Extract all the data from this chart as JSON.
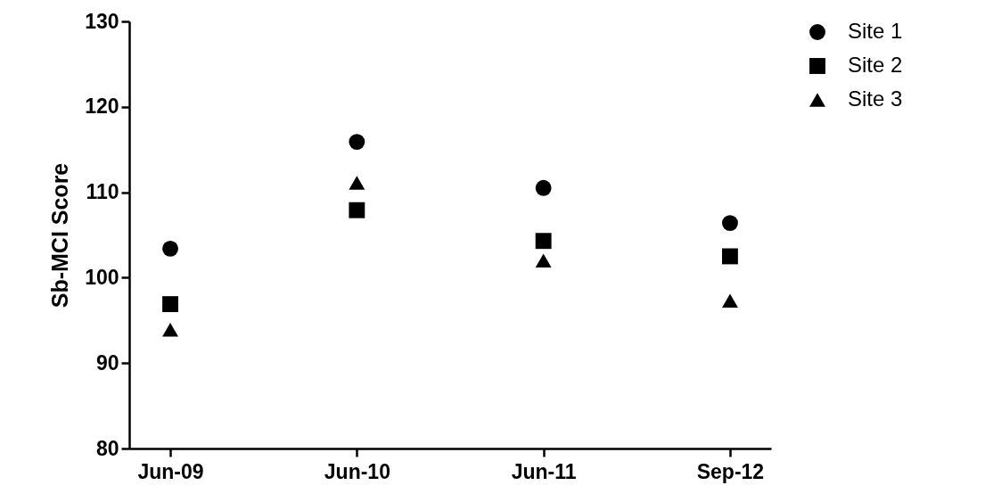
{
  "chart_data": {
    "type": "scatter",
    "ylabel": "Sb-MCI Score",
    "categories": [
      "Jun-09",
      "Jun-10",
      "Jun-11",
      "Sep-12"
    ],
    "series": [
      {
        "name": "Site 1",
        "color": "#000000",
        "marker": "circle",
        "values": [
          103.4,
          115.9,
          110.5,
          106.4
        ]
      },
      {
        "name": "Site 2",
        "color": "#000000",
        "marker": "square",
        "values": [
          96.9,
          107.9,
          104.3,
          102.5
        ]
      },
      {
        "name": "Site 3",
        "color": "#000000",
        "marker": "triangle",
        "values": [
          93.9,
          111.1,
          102.0,
          97.3
        ]
      }
    ],
    "ylim": [
      80,
      130
    ],
    "yticks": [
      80,
      90,
      100,
      110,
      120,
      130
    ],
    "grid": false,
    "legend": "top right"
  }
}
